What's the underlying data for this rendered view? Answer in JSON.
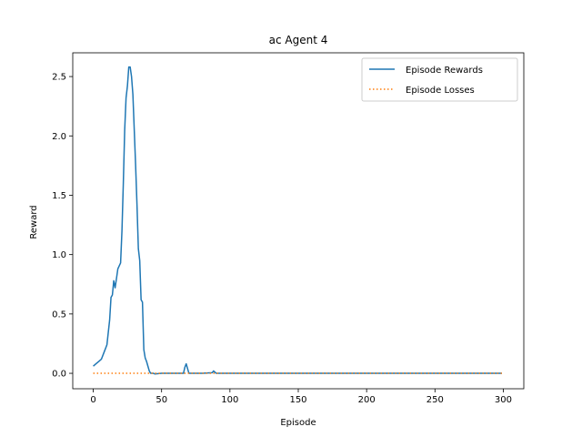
{
  "chart_data": {
    "type": "line",
    "title": "ac Agent 4",
    "xlabel": "Episode",
    "ylabel": "Reward",
    "xlim": [
      -15,
      315
    ],
    "ylim": [
      -0.13,
      2.7
    ],
    "xticks": [
      0,
      50,
      100,
      150,
      200,
      250,
      300
    ],
    "yticks": [
      0.0,
      0.5,
      1.0,
      1.5,
      2.0,
      2.5
    ],
    "xtick_labels": [
      "0",
      "50",
      "100",
      "150",
      "200",
      "250",
      "300"
    ],
    "ytick_labels": [
      "0.0",
      "0.5",
      "1.0",
      "1.5",
      "2.0",
      "2.5"
    ],
    "grid": false,
    "legend_position": "top-right",
    "series": [
      {
        "name": "Episode Rewards",
        "color": "#1f77b4",
        "style": "solid",
        "x": [
          0,
          2,
          4,
          6,
          8,
          10,
          12,
          13,
          14,
          15,
          16,
          17,
          18,
          20,
          21,
          22,
          23,
          24,
          25,
          26,
          27,
          28,
          29,
          30,
          31,
          32,
          33,
          34,
          35,
          36,
          37,
          38,
          39,
          40,
          41,
          42,
          43,
          44,
          45,
          50,
          60,
          66,
          67,
          68,
          69,
          70,
          71,
          72,
          80,
          87,
          88,
          89,
          90,
          91,
          100,
          150,
          200,
          250,
          299
        ],
        "y": [
          0.06,
          0.08,
          0.1,
          0.12,
          0.18,
          0.24,
          0.45,
          0.64,
          0.66,
          0.78,
          0.72,
          0.8,
          0.88,
          0.93,
          1.2,
          1.6,
          2.05,
          2.32,
          2.42,
          2.58,
          2.58,
          2.5,
          2.35,
          2.05,
          1.75,
          1.42,
          1.05,
          0.95,
          0.62,
          0.6,
          0.2,
          0.13,
          0.1,
          0.06,
          0.02,
          0.0,
          0.0,
          0.0,
          -0.005,
          0.0,
          0.0,
          0.0,
          0.05,
          0.08,
          0.04,
          0.0,
          0.0,
          0.0,
          0.0,
          0.005,
          0.02,
          0.01,
          0.0,
          0.0,
          0.0,
          0.0,
          0.0,
          0.0,
          0.0
        ]
      },
      {
        "name": "Episode Losses",
        "color": "#ff7f0e",
        "style": "dotted",
        "x": [
          0,
          50,
          100,
          150,
          200,
          250,
          299
        ],
        "y": [
          0.0,
          0.0,
          0.0,
          0.0,
          0.0,
          0.0,
          0.0
        ]
      }
    ]
  }
}
